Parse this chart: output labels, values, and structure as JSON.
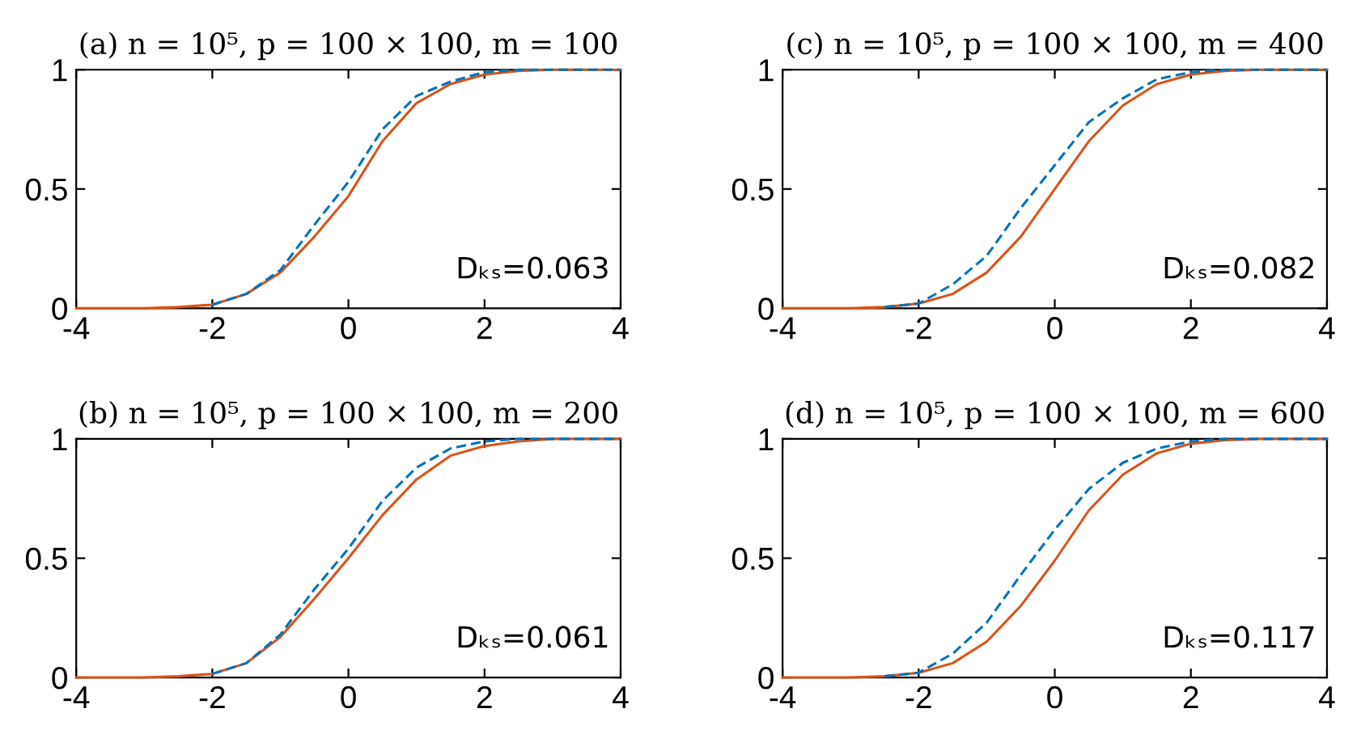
{
  "chart_data": [
    {
      "type": "line",
      "title": "(a) n = 10⁵, p = 100 × 100, m = 100",
      "xlim": [
        -4,
        4
      ],
      "ylim": [
        0,
        1
      ],
      "xticks": [
        -4,
        -2,
        0,
        2,
        4
      ],
      "yticks": [
        0,
        0.5,
        1
      ],
      "annotations": [
        "Dₖₛ=0.063"
      ],
      "x": [
        -4,
        -3,
        -2.5,
        -2,
        -1.5,
        -1,
        -0.5,
        0,
        0.5,
        1,
        1.5,
        2,
        2.5,
        3,
        4
      ],
      "series": [
        {
          "color": "#0072bd",
          "line_style": "dashed",
          "values": [
            null,
            null,
            null,
            0.015,
            0.06,
            0.16,
            0.35,
            0.53,
            0.75,
            0.89,
            0.95,
            0.99,
            1,
            1,
            1
          ]
        },
        {
          "color": "#d95319",
          "line_style": "solid",
          "values": [
            0,
            0,
            0.005,
            0.015,
            0.06,
            0.15,
            0.3,
            0.47,
            0.7,
            0.86,
            0.94,
            0.98,
            0.995,
            1,
            1
          ]
        }
      ]
    },
    {
      "type": "line",
      "title": "(c) n = 10⁵, p = 100 × 100, m = 400",
      "xlim": [
        -4,
        4
      ],
      "ylim": [
        0,
        1
      ],
      "xticks": [
        -4,
        -2,
        0,
        2,
        4
      ],
      "yticks": [
        0,
        0.5,
        1
      ],
      "annotations": [
        "Dₖₛ=0.082"
      ],
      "x": [
        -4,
        -3,
        -2.5,
        -2,
        -1.5,
        -1,
        -0.5,
        0,
        0.5,
        1,
        1.5,
        2,
        2.5,
        3,
        4
      ],
      "series": [
        {
          "color": "#0072bd",
          "line_style": "dashed",
          "values": [
            null,
            null,
            0.005,
            0.02,
            0.1,
            0.22,
            0.42,
            0.6,
            0.78,
            0.88,
            0.96,
            0.99,
            1,
            1,
            1
          ]
        },
        {
          "color": "#d95319",
          "line_style": "solid",
          "values": [
            0,
            0,
            0.005,
            0.02,
            0.06,
            0.15,
            0.3,
            0.5,
            0.7,
            0.85,
            0.94,
            0.98,
            0.995,
            1,
            1
          ]
        }
      ]
    },
    {
      "type": "line",
      "title": "(b) n = 10⁵, p = 100 × 100, m = 200",
      "xlim": [
        -4,
        4
      ],
      "ylim": [
        0,
        1
      ],
      "xticks": [
        -4,
        -2,
        0,
        2,
        4
      ],
      "yticks": [
        0,
        0.5,
        1
      ],
      "annotations": [
        "Dₖₛ=0.061"
      ],
      "x": [
        -4,
        -3,
        -2.5,
        -2,
        -1.5,
        -1,
        -0.5,
        0,
        0.5,
        1,
        1.5,
        2,
        2.5,
        3,
        4
      ],
      "series": [
        {
          "color": "#0072bd",
          "line_style": "dashed",
          "values": [
            null,
            null,
            null,
            0.015,
            0.06,
            0.18,
            0.37,
            0.54,
            0.74,
            0.88,
            0.96,
            0.99,
            1,
            1,
            1
          ]
        },
        {
          "color": "#d95319",
          "line_style": "solid",
          "values": [
            0,
            0,
            0.005,
            0.015,
            0.06,
            0.17,
            0.33,
            0.5,
            0.68,
            0.83,
            0.93,
            0.97,
            0.99,
            1,
            1
          ]
        }
      ]
    },
    {
      "type": "line",
      "title": "(d) n = 10⁵, p = 100 × 100, m = 600",
      "xlim": [
        -4,
        4
      ],
      "ylim": [
        0,
        1
      ],
      "xticks": [
        -4,
        -2,
        0,
        2,
        4
      ],
      "yticks": [
        0,
        0.5,
        1
      ],
      "annotations": [
        "Dₖₛ=0.117"
      ],
      "x": [
        -4,
        -3,
        -2.5,
        -2,
        -1.5,
        -1,
        -0.5,
        0,
        0.5,
        1,
        1.5,
        2,
        2.5,
        3,
        4
      ],
      "series": [
        {
          "color": "#0072bd",
          "line_style": "dashed",
          "values": [
            null,
            null,
            0.005,
            0.02,
            0.1,
            0.23,
            0.43,
            0.62,
            0.79,
            0.9,
            0.96,
            0.99,
            1,
            1,
            1
          ]
        },
        {
          "color": "#d95319",
          "line_style": "solid",
          "values": [
            0,
            0,
            0.005,
            0.02,
            0.06,
            0.15,
            0.3,
            0.49,
            0.7,
            0.85,
            0.94,
            0.98,
            0.995,
            1,
            1
          ]
        }
      ]
    }
  ]
}
